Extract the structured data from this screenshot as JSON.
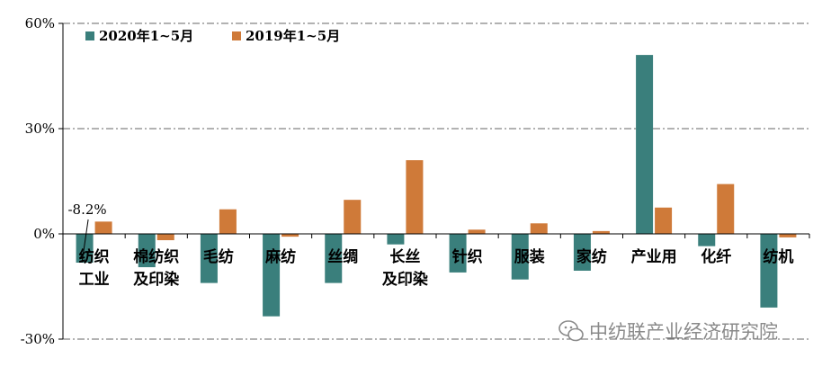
{
  "chart_data": {
    "type": "bar",
    "title": "",
    "xlabel": "",
    "ylabel": "",
    "ylim": [
      -30,
      60
    ],
    "yticks": [
      {
        "value": -30,
        "label": "-30%"
      },
      {
        "value": 0,
        "label": "0%"
      },
      {
        "value": 30,
        "label": "30%"
      },
      {
        "value": 60,
        "label": "60%"
      }
    ],
    "grid": true,
    "legend_position": "top-left",
    "categories": [
      [
        "纺织",
        "工业"
      ],
      [
        "棉纺织",
        "及印染"
      ],
      [
        "毛纺"
      ],
      [
        "麻纺"
      ],
      [
        "丝绸"
      ],
      [
        "长丝",
        "及印染"
      ],
      [
        "针织"
      ],
      [
        "服装"
      ],
      [
        "家纺"
      ],
      [
        "产业用"
      ],
      [
        "化纤"
      ],
      [
        "纺机"
      ]
    ],
    "series": [
      {
        "name": "2020年1~5月",
        "color": "#3a7f7c",
        "values": [
          -8.2,
          -9.5,
          -14,
          -23.5,
          -14,
          -3,
          -11,
          -13,
          -10.5,
          51,
          -3.5,
          -21
        ]
      },
      {
        "name": "2019年1~5月",
        "color": "#cf7a39",
        "values": [
          3.5,
          -1.8,
          7,
          -0.8,
          9.7,
          21,
          1.2,
          3,
          0.8,
          7.5,
          14.2,
          -1
        ]
      }
    ],
    "annotations": [
      {
        "text": "-8.2%",
        "category_index": 0,
        "series_index": 0
      }
    ]
  },
  "watermark": {
    "icon": "wechat-icon",
    "text": "中纺联产业经济研究院"
  }
}
